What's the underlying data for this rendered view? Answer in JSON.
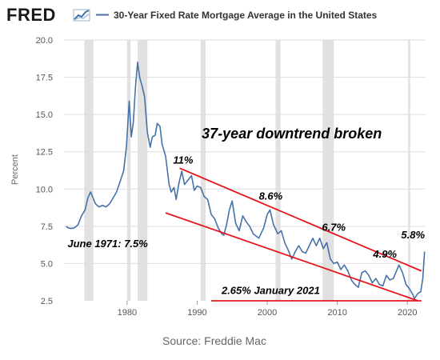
{
  "brand": {
    "logo_text": "FRED"
  },
  "chart_data": {
    "type": "line",
    "title": "30-Year Fixed Rate Mortgage Average in the United States",
    "ylabel": "Percent",
    "source": "Source: Freddie Mac",
    "series_color": "#4572a7",
    "trend_color": "#e8141b",
    "recession_color": "#e1e1e1",
    "xlim": [
      1971,
      2022.6
    ],
    "ylim": [
      2.5,
      20.0
    ],
    "x_ticks": [
      1980,
      1990,
      2000,
      2010,
      2020
    ],
    "x_tick_labels": [
      "1980",
      "1990",
      "2000",
      "2010",
      "2020"
    ],
    "y_ticks": [
      2.5,
      5.0,
      7.5,
      10.0,
      12.5,
      15.0,
      17.5,
      20.0
    ],
    "y_tick_labels": [
      "2.5",
      "5.0",
      "7.5",
      "10.0",
      "12.5",
      "15.0",
      "17.5",
      "20.0"
    ],
    "recessions": [
      [
        1973.9,
        1975.2
      ],
      [
        1980.0,
        1980.5
      ],
      [
        1981.5,
        1982.9
      ],
      [
        1990.5,
        1991.2
      ],
      [
        2001.2,
        2001.9
      ],
      [
        2007.9,
        2009.5
      ],
      [
        2020.1,
        2020.4
      ]
    ],
    "series": [
      {
        "x": [
          1971.3,
          1971.6,
          1972.0,
          1972.5,
          1973.0,
          1973.5,
          1974.0,
          1974.4,
          1974.8,
          1975.5,
          1976.0,
          1976.5,
          1977.0,
          1977.5,
          1978.0,
          1978.5,
          1979.0,
          1979.5,
          1979.9,
          1980.3,
          1980.6,
          1980.9,
          1981.2,
          1981.5,
          1981.8,
          1982.2,
          1982.5,
          1982.9,
          1983.3,
          1983.6,
          1984.0,
          1984.3,
          1984.7,
          1985.0,
          1985.5,
          1986.0,
          1986.3,
          1986.7,
          1987.0,
          1987.4,
          1987.8,
          1988.2,
          1988.7,
          1989.2,
          1989.6,
          1990.0,
          1990.5,
          1991.0,
          1991.5,
          1992.0,
          1992.5,
          1993.0,
          1993.5,
          1993.8,
          1994.2,
          1994.6,
          1995.0,
          1995.5,
          1996.0,
          1996.5,
          1997.0,
          1997.5,
          1998.0,
          1998.8,
          1999.5,
          2000.0,
          2000.4,
          2000.9,
          2001.5,
          2002.0,
          2002.5,
          2003.0,
          2003.5,
          2004.0,
          2004.5,
          2005.0,
          2005.5,
          2006.0,
          2006.5,
          2007.0,
          2007.5,
          2008.0,
          2008.5,
          2009.0,
          2009.5,
          2010.0,
          2010.5,
          2011.0,
          2011.5,
          2012.0,
          2012.5,
          2013.0,
          2013.5,
          2014.0,
          2014.5,
          2015.0,
          2015.5,
          2016.0,
          2016.5,
          2017.0,
          2017.5,
          2018.0,
          2018.8,
          2019.3,
          2019.8,
          2020.3,
          2020.8,
          2021.0,
          2021.5,
          2021.9,
          2022.2,
          2022.45
        ],
        "values": [
          7.5,
          7.4,
          7.35,
          7.4,
          7.6,
          8.2,
          8.6,
          9.4,
          9.8,
          9.0,
          8.8,
          8.9,
          8.8,
          9.0,
          9.4,
          9.8,
          10.5,
          11.2,
          12.8,
          15.9,
          13.5,
          14.5,
          16.8,
          18.5,
          17.5,
          16.8,
          16.2,
          13.8,
          12.8,
          13.5,
          13.6,
          14.4,
          14.2,
          13.0,
          12.2,
          10.3,
          9.8,
          10.1,
          9.3,
          10.4,
          11.2,
          10.3,
          10.6,
          10.9,
          9.9,
          10.2,
          10.1,
          9.5,
          9.3,
          8.3,
          8.0,
          7.4,
          7.0,
          6.9,
          7.6,
          8.6,
          9.2,
          7.7,
          7.2,
          8.2,
          7.8,
          7.5,
          7.0,
          6.7,
          7.4,
          8.3,
          8.6,
          7.6,
          7.0,
          7.2,
          6.4,
          5.9,
          5.3,
          5.8,
          6.2,
          5.8,
          5.7,
          6.2,
          6.7,
          6.2,
          6.7,
          6.0,
          6.4,
          5.3,
          5.0,
          5.1,
          4.6,
          4.9,
          4.5,
          3.9,
          3.6,
          3.4,
          4.4,
          4.5,
          4.2,
          3.7,
          4.0,
          3.6,
          3.5,
          4.2,
          3.9,
          4.0,
          4.9,
          4.4,
          3.6,
          3.3,
          2.9,
          2.65,
          3.0,
          3.1,
          4.0,
          5.8
        ]
      }
    ],
    "annotations": [
      {
        "text": "37-year downtrend broken",
        "x": 2003.5,
        "y": 13.4,
        "size": 18,
        "anchor": "middle"
      },
      {
        "text": "11%",
        "x": 1988.0,
        "y": 11.7,
        "size": 13,
        "anchor": "middle"
      },
      {
        "text": "8.6%",
        "x": 2000.5,
        "y": 9.3,
        "size": 13,
        "anchor": "middle"
      },
      {
        "text": "6.7%",
        "x": 2009.5,
        "y": 7.2,
        "size": 13,
        "anchor": "middle"
      },
      {
        "text": "4.9%",
        "x": 2016.8,
        "y": 5.4,
        "size": 13,
        "anchor": "middle"
      },
      {
        "text": "5.8%",
        "x": 2020.8,
        "y": 6.7,
        "size": 13,
        "anchor": "middle"
      },
      {
        "text": "June 1971: 7.5%",
        "x": 1971.5,
        "y": 6.1,
        "size": 13,
        "anchor": "start"
      },
      {
        "text": "2.65% January 2021",
        "x": 2000.5,
        "y": 2.95,
        "size": 13,
        "anchor": "middle"
      }
    ],
    "trend_lines": [
      {
        "x1": 1987.5,
        "y1": 11.4,
        "x2": 2022.0,
        "y2": 4.5
      },
      {
        "x1": 1985.5,
        "y1": 8.4,
        "x2": 2021.5,
        "y2": 2.5
      },
      {
        "x1": 1992.0,
        "y1": 2.5,
        "x2": 2022.0,
        "y2": 2.5
      }
    ]
  }
}
